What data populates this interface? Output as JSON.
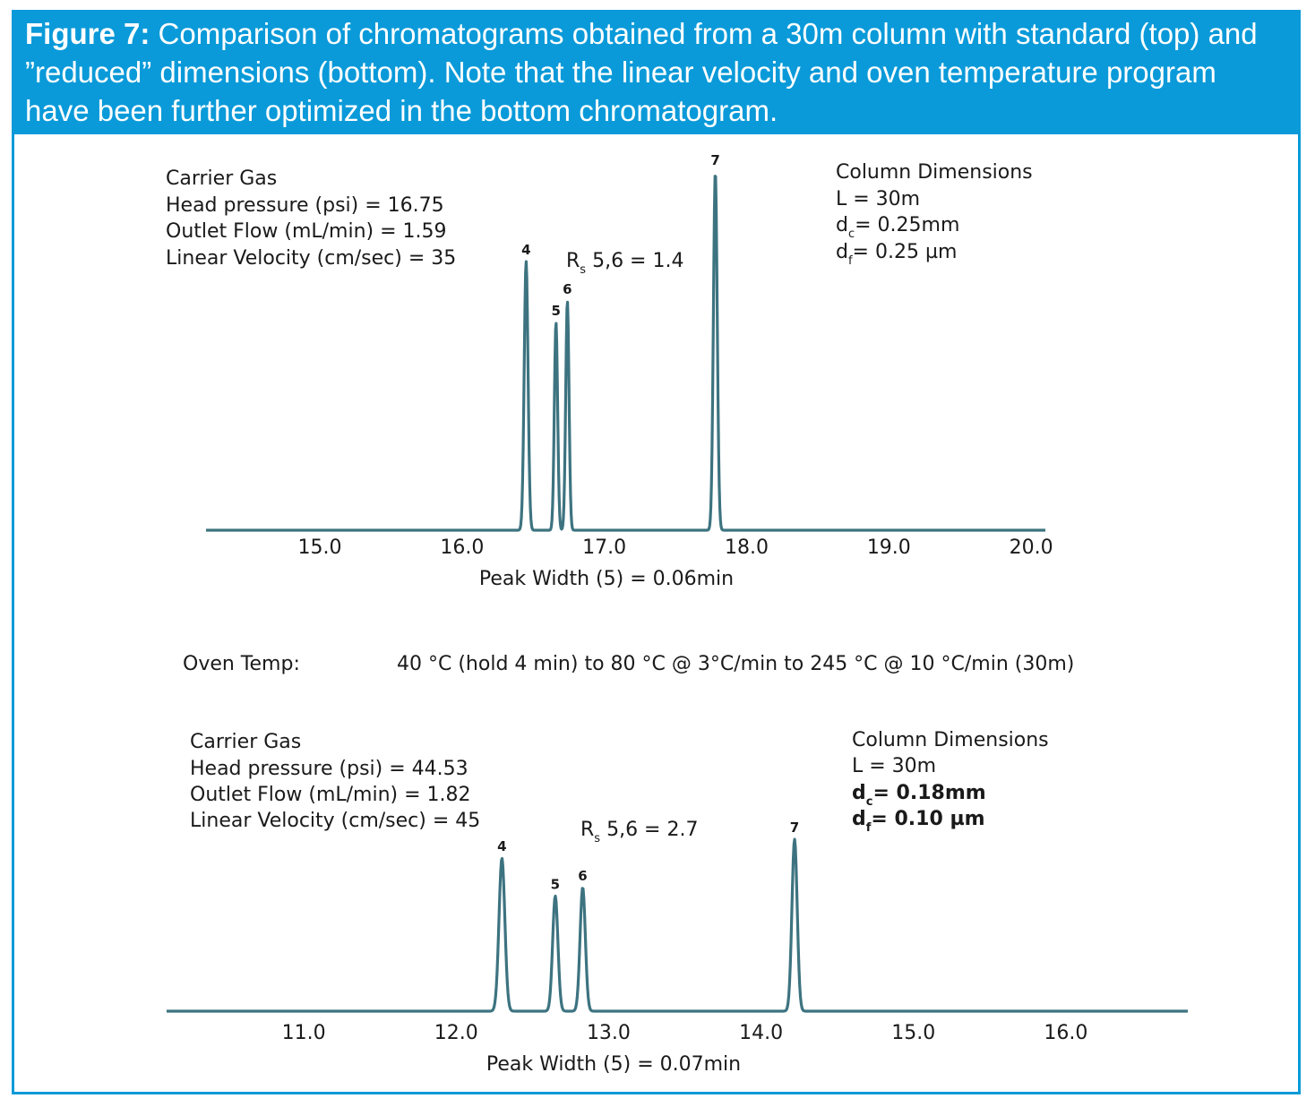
{
  "caption": {
    "label": "Figure 7:",
    "text": "Comparison of chromatograms obtained from a 30m column with standard (top) and ”reduced” dimensions (bottom). Note that the linear velocity and oven temperature program have been further optimized in the bottom chromatogram."
  },
  "oven": {
    "label": "Oven Temp:",
    "program": "40 °C (hold 4 min) to 80 °C @ 3°C/min to 245 °C @ 10 °C/min (30m)"
  },
  "colors": {
    "header": "#0a9ad9",
    "trace": "#3d7380"
  },
  "chart_data": [
    {
      "type": "line",
      "xlim": [
        14.2,
        20.1
      ],
      "tick_labels": [
        "15.0",
        "16.0",
        "17.0",
        "18.0",
        "19.0",
        "20.0"
      ],
      "ticks": [
        15.0,
        16.0,
        17.0,
        18.0,
        19.0,
        20.0
      ],
      "peaks": [
        {
          "label": "4",
          "x": 16.45,
          "height": 0.75,
          "width": 0.035
        },
        {
          "label": "5",
          "x": 16.66,
          "height": 0.58,
          "width": 0.03
        },
        {
          "label": "6",
          "x": 16.74,
          "height": 0.64,
          "width": 0.03
        },
        {
          "label": "7",
          "x": 17.78,
          "height": 1.0,
          "width": 0.035
        }
      ],
      "carrier": {
        "title": "Carrier Gas",
        "lines": [
          "Head pressure (psi) = 16.75",
          "Outlet Flow (mL/min) = 1.59",
          "Linear Velocity (cm/sec) = 35"
        ]
      },
      "column": {
        "title": "Column Dimensions",
        "length": "L = 30m",
        "dc": {
          "symbol": "d",
          "sub": "c",
          "value": "= 0.25mm"
        },
        "df": {
          "symbol": "d",
          "sub": "f",
          "value": "= 0.25 µm"
        }
      },
      "resolution": {
        "symbol": "R",
        "sub": "s",
        "value": "5,6 = 1.4"
      },
      "peak_width": "Peak Width (5) = 0.06min"
    },
    {
      "type": "line",
      "xlim": [
        10.1,
        16.8
      ],
      "tick_labels": [
        "11.0",
        "12.0",
        "13.0",
        "14.0",
        "15.0",
        "16.0"
      ],
      "ticks": [
        11.0,
        12.0,
        13.0,
        14.0,
        15.0,
        16.0
      ],
      "peaks": [
        {
          "label": "4",
          "x": 12.3,
          "height": 0.89,
          "width": 0.05
        },
        {
          "label": "5",
          "x": 12.65,
          "height": 0.67,
          "width": 0.045
        },
        {
          "label": "6",
          "x": 12.83,
          "height": 0.72,
          "width": 0.045
        },
        {
          "label": "7",
          "x": 14.22,
          "height": 1.0,
          "width": 0.045
        }
      ],
      "carrier": {
        "title": "Carrier Gas",
        "lines": [
          "Head pressure (psi) = 44.53",
          "Outlet Flow (mL/min) = 1.82",
          "Linear Velocity (cm/sec) = 45"
        ]
      },
      "column": {
        "title": "Column Dimensions",
        "length": "L = 30m",
        "dc": {
          "symbol": "d",
          "sub": "c",
          "value": "= 0.18mm"
        },
        "df": {
          "symbol": "d",
          "sub": "f",
          "value": "= 0.10 µm"
        }
      },
      "resolution": {
        "symbol": "R",
        "sub": "s",
        "value": "5,6 = 2.7"
      },
      "peak_width": "Peak Width (5) = 0.07min"
    }
  ]
}
